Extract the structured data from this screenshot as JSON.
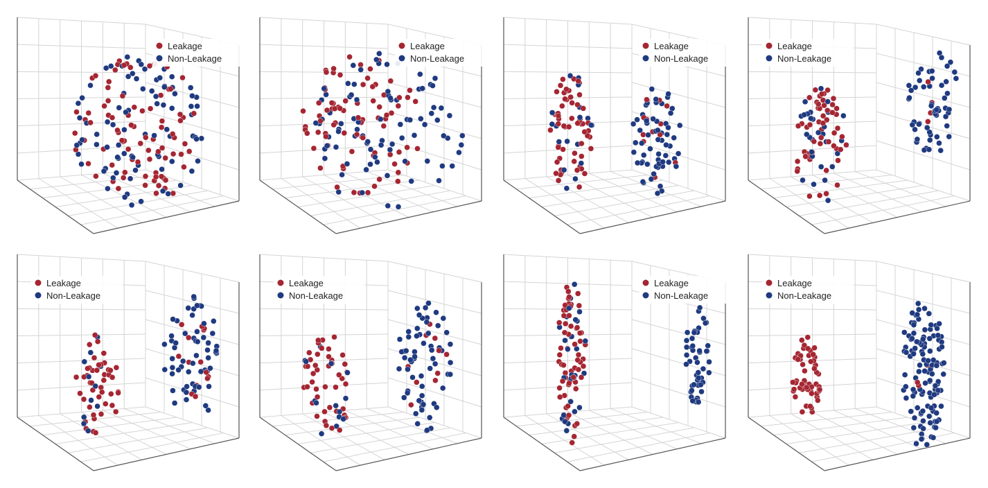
{
  "figure": {
    "panel_count": 8,
    "colors": {
      "leakage": "#a52632",
      "non_leakage": "#1f3a80",
      "grid": "#d4d4d4",
      "axis": "#555555"
    }
  },
  "chart_data": [
    {
      "type": "scatter",
      "panel": 1,
      "legend": [
        "Leakage",
        "Non-Leakage"
      ],
      "legend_position": "top-right",
      "series": [
        {
          "name": "Leakage",
          "clusters": [
            {
              "center": [
                0.5,
                0.48
              ],
              "spread": [
                0.27,
                0.32
              ],
              "count": 85
            }
          ]
        },
        {
          "name": "Non-Leakage",
          "clusters": [
            {
              "center": [
                0.5,
                0.48
              ],
              "spread": [
                0.27,
                0.32
              ],
              "count": 85
            }
          ]
        }
      ]
    },
    {
      "type": "scatter",
      "panel": 2,
      "legend": [
        "Leakage",
        "Non-Leakage"
      ],
      "legend_position": "top-right",
      "series": [
        {
          "name": "Leakage",
          "clusters": [
            {
              "center": [
                0.42,
                0.46
              ],
              "spread": [
                0.25,
                0.3
              ],
              "count": 80
            }
          ]
        },
        {
          "name": "Non-Leakage",
          "clusters": [
            {
              "center": [
                0.52,
                0.48
              ],
              "spread": [
                0.32,
                0.33
              ],
              "count": 85
            }
          ]
        }
      ]
    },
    {
      "type": "scatter",
      "panel": 3,
      "legend": [
        "Leakage",
        "Non-Leakage"
      ],
      "legend_position": "top-right",
      "series": [
        {
          "name": "Leakage",
          "clusters": [
            {
              "center": [
                0.28,
                0.5
              ],
              "spread": [
                0.09,
                0.27
              ],
              "count": 60
            },
            {
              "center": [
                0.63,
                0.52
              ],
              "spread": [
                0.09,
                0.2
              ],
              "count": 12
            }
          ]
        },
        {
          "name": "Non-Leakage",
          "clusters": [
            {
              "center": [
                0.28,
                0.5
              ],
              "spread": [
                0.09,
                0.27
              ],
              "count": 18
            },
            {
              "center": [
                0.63,
                0.52
              ],
              "spread": [
                0.1,
                0.24
              ],
              "count": 60
            }
          ]
        }
      ]
    },
    {
      "type": "scatter",
      "panel": 4,
      "legend": [
        "Leakage",
        "Non-Leakage"
      ],
      "legend_position": "top-left",
      "series": [
        {
          "name": "Leakage",
          "clusters": [
            {
              "center": [
                0.3,
                0.54
              ],
              "spread": [
                0.11,
                0.25
              ],
              "count": 55
            },
            {
              "center": [
                0.76,
                0.36
              ],
              "spread": [
                0.05,
                0.1
              ],
              "count": 4
            }
          ]
        },
        {
          "name": "Non-Leakage",
          "clusters": [
            {
              "center": [
                0.3,
                0.54
              ],
              "spread": [
                0.11,
                0.25
              ],
              "count": 28
            },
            {
              "center": [
                0.76,
                0.36
              ],
              "spread": [
                0.11,
                0.23
              ],
              "count": 55
            }
          ]
        }
      ]
    },
    {
      "type": "scatter",
      "panel": 5,
      "legend": [
        "Leakage",
        "Non-Leakage"
      ],
      "legend_position": "top-left",
      "series": [
        {
          "name": "Leakage",
          "clusters": [
            {
              "center": [
                0.33,
                0.56
              ],
              "spread": [
                0.09,
                0.22
              ],
              "count": 45
            },
            {
              "center": [
                0.72,
                0.44
              ],
              "spread": [
                0.09,
                0.18
              ],
              "count": 14
            }
          ]
        },
        {
          "name": "Non-Leakage",
          "clusters": [
            {
              "center": [
                0.33,
                0.56
              ],
              "spread": [
                0.09,
                0.22
              ],
              "count": 12
            },
            {
              "center": [
                0.72,
                0.44
              ],
              "spread": [
                0.12,
                0.27
              ],
              "count": 60
            }
          ]
        }
      ]
    },
    {
      "type": "scatter",
      "panel": 6,
      "legend": [
        "Leakage",
        "Non-Leakage"
      ],
      "legend_position": "top-left",
      "series": [
        {
          "name": "Leakage",
          "clusters": [
            {
              "center": [
                0.27,
                0.57
              ],
              "spread": [
                0.1,
                0.24
              ],
              "count": 45
            },
            {
              "center": [
                0.68,
                0.48
              ],
              "spread": [
                0.1,
                0.2
              ],
              "count": 10
            }
          ]
        },
        {
          "name": "Non-Leakage",
          "clusters": [
            {
              "center": [
                0.27,
                0.57
              ],
              "spread": [
                0.1,
                0.24
              ],
              "count": 14
            },
            {
              "center": [
                0.68,
                0.48
              ],
              "spread": [
                0.12,
                0.28
              ],
              "count": 62
            }
          ]
        }
      ]
    },
    {
      "type": "scatter",
      "panel": 7,
      "legend": [
        "Leakage",
        "Non-Leakage"
      ],
      "legend_position": "top-right",
      "series": [
        {
          "name": "Leakage",
          "clusters": [
            {
              "center": [
                0.28,
                0.46
              ],
              "spread": [
                0.06,
                0.34
              ],
              "count": 62
            }
          ]
        },
        {
          "name": "Non-Leakage",
          "clusters": [
            {
              "center": [
                0.28,
                0.46
              ],
              "spread": [
                0.06,
                0.34
              ],
              "count": 28
            },
            {
              "center": [
                0.8,
                0.43
              ],
              "spread": [
                0.05,
                0.22
              ],
              "count": 50
            }
          ]
        }
      ]
    },
    {
      "type": "scatter",
      "panel": 8,
      "legend": [
        "Leakage",
        "Non-Leakage"
      ],
      "legend_position": "top-left",
      "series": [
        {
          "name": "Leakage",
          "clusters": [
            {
              "center": [
                0.24,
                0.52
              ],
              "spread": [
                0.06,
                0.17
              ],
              "count": 55
            },
            {
              "center": [
                0.72,
                0.5
              ],
              "spread": [
                0.04,
                0.08
              ],
              "count": 3
            }
          ]
        },
        {
          "name": "Non-Leakage",
          "clusters": [
            {
              "center": [
                0.72,
                0.5
              ],
              "spread": [
                0.09,
                0.32
              ],
              "count": 120
            }
          ]
        }
      ]
    }
  ]
}
